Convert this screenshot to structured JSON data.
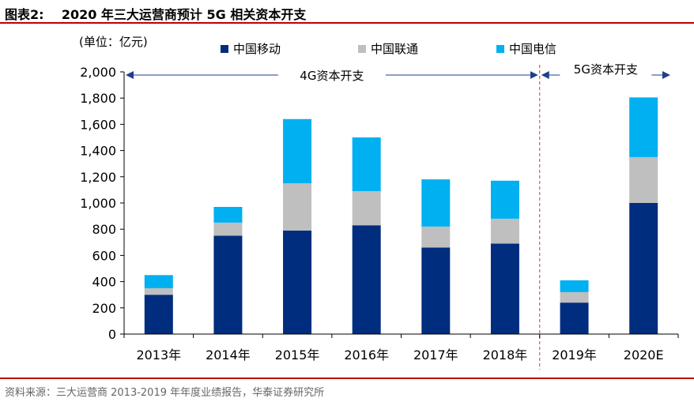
{
  "figure": {
    "title": "图表2:    2020 年三大运营商预计 5G 相关资本开支",
    "source": "资料来源：三大运营商 2013-2019 年年度业绩报告，华泰证券研究所"
  },
  "chart_data": {
    "type": "bar",
    "stacked": true,
    "unit_label": "(单位：亿元)",
    "categories": [
      "2013年",
      "2014年",
      "2015年",
      "2016年",
      "2017年",
      "2018年",
      "2019年",
      "2020E"
    ],
    "series": [
      {
        "name": "中国移动",
        "color": "#002d7d",
        "values": [
          300,
          750,
          790,
          830,
          660,
          690,
          240,
          1000
        ]
      },
      {
        "name": "中国联通",
        "color": "#bfbfbf",
        "values": [
          50,
          100,
          360,
          260,
          160,
          190,
          80,
          350
        ]
      },
      {
        "name": "中国电信",
        "color": "#00b0f0",
        "values": [
          100,
          120,
          490,
          410,
          360,
          290,
          90,
          455
        ]
      }
    ],
    "ylim": [
      0,
      2000
    ],
    "yticks": [
      0,
      200,
      400,
      600,
      800,
      1000,
      1200,
      1400,
      1600,
      1800,
      2000
    ],
    "ytick_labels": [
      "0",
      "200",
      "400",
      "600",
      "800",
      "1,000",
      "1,200",
      "1,400",
      "1,600",
      "1,800",
      "2,000"
    ],
    "legend_position": "top",
    "grid": false,
    "annotations": {
      "period_4g": {
        "label": "4G资本开支",
        "from_category": 0,
        "to_category": 5
      },
      "period_5g": {
        "label": "5G资本开支",
        "from_category": 6,
        "to_category": 7
      },
      "divider": {
        "between_categories": [
          5,
          6
        ],
        "color": "#e03030"
      },
      "arrow_color": "#1f3e8f"
    }
  }
}
